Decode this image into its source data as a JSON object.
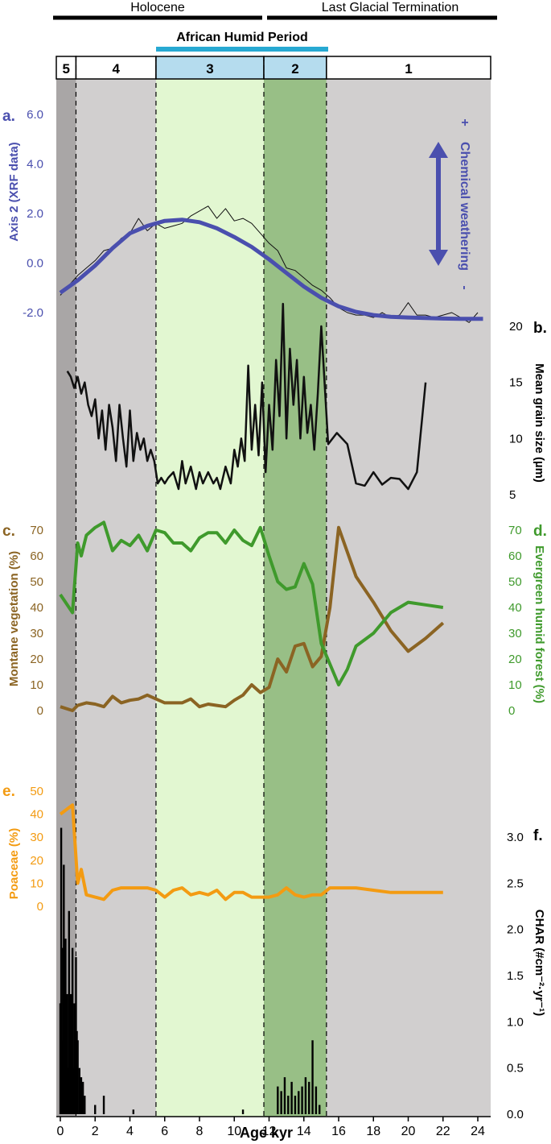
{
  "colors": {
    "zone5": "#a9a6a6",
    "zone4": "#d1cfcf",
    "zone3": "#e2f7d1",
    "zone2": "#98bf86",
    "zone1": "#d1cfcf",
    "zone3_header": "#b5dcee",
    "zone2_header": "#b5dcee",
    "axis2": "#4a4fae",
    "grain": "#111111",
    "montane": "#8b6423",
    "evergreen": "#3f9a2c",
    "poaceae": "#f39b12",
    "char": "#000000",
    "ahp_bar": "#27a9d2"
  },
  "top": {
    "holocene": "Holocene",
    "lgt": "Last Glacial Termination",
    "ahp": "African Humid Period",
    "zones": [
      "5",
      "4",
      "3",
      "2",
      "1"
    ]
  },
  "panel_labels": {
    "a": "a.",
    "b": "b.",
    "c": "c.",
    "d": "d.",
    "e": "e.",
    "f": "f."
  },
  "axis_labels": {
    "a": "Axis 2 (XRF data)",
    "b": "Mean grain size (µm)",
    "c": "Montane vegetation (%)",
    "d": "Evergreen humid forest (%)",
    "e": "Poaceae (%)",
    "f": "CHAR (#cm⁻²·yr⁻¹)",
    "x": "Age kyr"
  },
  "annotation": {
    "plus": "+",
    "chem": "Chemical weathering",
    "minus": "-"
  },
  "ticks": {
    "x": [
      "0",
      "2",
      "4",
      "6",
      "8",
      "10",
      "12",
      "14",
      "16",
      "18",
      "20",
      "22",
      "24"
    ],
    "a": [
      "6.0",
      "4.0",
      "2.0",
      "0.0",
      "-2.0"
    ],
    "b": [
      "20",
      "15",
      "10",
      "5"
    ],
    "c": [
      "70",
      "60",
      "50",
      "40",
      "30",
      "20",
      "10",
      "0"
    ],
    "d": [
      "70",
      "60",
      "50",
      "40",
      "30",
      "20",
      "10",
      "0"
    ],
    "e": [
      "50",
      "40",
      "30",
      "20",
      "10",
      "0"
    ],
    "f": [
      "3.0",
      "2.5",
      "2.0",
      "1.5",
      "1.0",
      "0.5",
      "0.0"
    ]
  },
  "chart_data": [
    {
      "panel": "a",
      "type": "line",
      "ylabel": "Axis 2 (XRF data)",
      "ylim": [
        -2.0,
        6.0
      ],
      "zone_boundaries_kyr": [
        0.9,
        5.5,
        11.7,
        15.3
      ],
      "series": [
        {
          "x": [
            0,
            0.5,
            1,
            1.5,
            2,
            2.5,
            3,
            3.5,
            4,
            4.5,
            5,
            5.5,
            6,
            6.5,
            7,
            7.5,
            8,
            8.5,
            9,
            9.5,
            10,
            10.5,
            11,
            11.5,
            12,
            12.5,
            13,
            13.5,
            14,
            14.5,
            15,
            15.5,
            16,
            16.5,
            17,
            17.5,
            18,
            18.5,
            19,
            19.5,
            20,
            20.5,
            21,
            21.5,
            22,
            22.5,
            23,
            23.5,
            24
          ],
          "y": [
            -1.3,
            -0.9,
            -0.5,
            -0.2,
            0.1,
            0.5,
            0.6,
            1.0,
            1.2,
            1.8,
            1.3,
            1.6,
            1.4,
            1.5,
            1.6,
            1.9,
            2.1,
            2.3,
            1.8,
            2.2,
            1.7,
            1.8,
            1.6,
            1.2,
            0.8,
            0.5,
            -0.2,
            -0.3,
            -0.6,
            -0.9,
            -1.1,
            -1.4,
            -1.8,
            -2.0,
            -2.1,
            -2.1,
            -2.2,
            -2.0,
            -2.2,
            -2.1,
            -1.6,
            -2.1,
            -2.1,
            -2.2,
            -2.1,
            -2.0,
            -2.2,
            -2.4,
            -2.0
          ]
        },
        {
          "x": [
            0,
            1,
            2,
            3,
            4,
            5,
            6,
            7,
            8,
            9,
            10,
            11,
            12,
            13,
            14,
            15,
            16,
            17,
            18,
            19,
            20,
            21,
            22,
            23,
            24.3
          ],
          "y": [
            -1.2,
            -0.7,
            -0.1,
            0.6,
            1.2,
            1.5,
            1.7,
            1.75,
            1.65,
            1.4,
            1.05,
            0.65,
            0.15,
            -0.4,
            -0.95,
            -1.4,
            -1.75,
            -1.97,
            -2.1,
            -2.17,
            -2.2,
            -2.22,
            -2.24,
            -2.25,
            -2.25
          ]
        }
      ]
    },
    {
      "panel": "b",
      "type": "line",
      "ylabel": "Mean grain size (µm)",
      "ylim": [
        5,
        20
      ],
      "x": [
        0.4,
        0.6,
        0.8,
        1.0,
        1.2,
        1.4,
        1.6,
        1.8,
        2.0,
        2.2,
        2.4,
        2.6,
        2.8,
        3.0,
        3.2,
        3.4,
        3.6,
        3.8,
        4.0,
        4.2,
        4.4,
        4.6,
        4.8,
        5.0,
        5.2,
        5.4,
        5.6,
        5.8,
        6.0,
        6.2,
        6.5,
        6.8,
        7.0,
        7.2,
        7.5,
        7.8,
        8.0,
        8.2,
        8.5,
        8.8,
        9.0,
        9.2,
        9.5,
        9.8,
        10.0,
        10.2,
        10.4,
        10.6,
        10.8,
        11.0,
        11.2,
        11.4,
        11.6,
        11.8,
        12.0,
        12.2,
        12.4,
        12.6,
        12.8,
        13.0,
        13.2,
        13.4,
        13.6,
        13.8,
        14.0,
        14.2,
        14.4,
        14.6,
        14.8,
        15.0,
        15.4,
        15.9,
        16.5,
        17.0,
        17.5,
        18.0,
        18.5,
        19.0,
        19.5,
        20.0,
        20.5,
        21.0
      ],
      "y": [
        16,
        15.5,
        14.5,
        15.5,
        14.0,
        15.0,
        13.0,
        12.0,
        13.5,
        10.0,
        12.5,
        9.0,
        13.0,
        11.0,
        8.0,
        13.0,
        10.0,
        7.5,
        12.5,
        8.0,
        10.5,
        9.0,
        10.0,
        8.0,
        9.0,
        8.0,
        6.0,
        6.5,
        6.0,
        6.5,
        7.0,
        5.5,
        8.0,
        6.0,
        7.5,
        5.5,
        7.0,
        6.0,
        7.0,
        6.0,
        6.5,
        5.5,
        7.5,
        6.0,
        9.0,
        7.5,
        10.0,
        8.0,
        16.5,
        9.0,
        13.0,
        8.5,
        15.0,
        7.0,
        13.0,
        9.0,
        17.0,
        12.0,
        22.0,
        10.0,
        18.0,
        13.0,
        17.0,
        10.0,
        15.5,
        10.5,
        13.0,
        9.0,
        14.0,
        20.0,
        9.5,
        10.5,
        9.5,
        6.0,
        5.8,
        7.0,
        5.9,
        6.5,
        6.4,
        5.5,
        7.0,
        15.0
      ]
    },
    {
      "panel": "c-d",
      "type": "line",
      "ylim": [
        0,
        70
      ],
      "series": [
        {
          "name": "Montane vegetation (%)",
          "x": [
            0.0,
            0.7,
            1.0,
            1.5,
            2.0,
            2.5,
            3.0,
            3.5,
            4.0,
            4.5,
            5.0,
            5.5,
            6.0,
            6.5,
            7.0,
            7.5,
            8.0,
            8.5,
            9.0,
            9.5,
            10.0,
            10.5,
            11.0,
            11.5,
            12.0,
            12.5,
            13.0,
            13.5,
            14.0,
            14.5,
            15.0,
            15.5,
            16.0,
            17.0,
            18.0,
            19.0,
            20.0,
            21.0,
            22.0
          ],
          "y": [
            1.5,
            0.0,
            2.0,
            3.0,
            2.5,
            1.5,
            5.5,
            3.0,
            4.0,
            4.5,
            6.0,
            4.5,
            3.0,
            3.0,
            3.0,
            4.5,
            1.5,
            2.5,
            2.0,
            1.5,
            4.0,
            6.0,
            10.0,
            7.0,
            9.0,
            20.0,
            15.0,
            25.0,
            26.0,
            17.0,
            21.0,
            40.0,
            71.0,
            52.0,
            42.0,
            31.0,
            23.0,
            28.0,
            34.0
          ]
        },
        {
          "name": "Evergreen humid forest (%)",
          "x": [
            0.0,
            0.7,
            1.0,
            1.2,
            1.5,
            2.0,
            2.5,
            3.0,
            3.5,
            4.0,
            4.5,
            5.0,
            5.5,
            6.0,
            6.5,
            7.0,
            7.5,
            8.0,
            8.5,
            9.0,
            9.5,
            10.0,
            10.5,
            11.0,
            11.5,
            12.0,
            12.5,
            13.0,
            13.5,
            14.0,
            14.5,
            15.0,
            15.5,
            16.0,
            16.5,
            17.0,
            18.0,
            19.0,
            20.0,
            21.0,
            22.0
          ],
          "y": [
            45.0,
            38.0,
            65.0,
            60.0,
            68.0,
            71.0,
            73.0,
            62.0,
            66.0,
            64.0,
            68.0,
            62.0,
            70.0,
            69.0,
            65.0,
            65.0,
            62.0,
            67.0,
            69.0,
            69.0,
            65.0,
            70.0,
            66.0,
            64.0,
            71.0,
            60.0,
            50.0,
            47.0,
            48.0,
            57.0,
            49.0,
            26.0,
            18.0,
            10.0,
            16.0,
            25.0,
            30.0,
            38.0,
            42.0,
            41.0,
            40.0
          ]
        }
      ]
    },
    {
      "panel": "e-f",
      "type": "line",
      "series": [
        {
          "name": "Poaceae (%)",
          "ylim": [
            0,
            50
          ],
          "x": [
            0.0,
            0.7,
            1.0,
            1.2,
            1.5,
            2.0,
            2.5,
            3.0,
            3.5,
            4.0,
            5.0,
            5.5,
            6.0,
            6.5,
            7.0,
            7.5,
            8.0,
            8.5,
            9.0,
            9.5,
            10.0,
            10.5,
            11.0,
            11.5,
            12.0,
            12.5,
            13.0,
            13.5,
            14.0,
            14.5,
            15.0,
            15.5,
            16.0,
            17.0,
            18.0,
            19.0,
            20.0,
            21.0,
            22.0
          ],
          "y": [
            40.0,
            44.0,
            10.0,
            16.0,
            5.0,
            4.0,
            3.0,
            7.0,
            8.0,
            8.0,
            8.0,
            7.0,
            4.0,
            7.0,
            8.0,
            5.0,
            6.0,
            5.0,
            7.0,
            3.0,
            6.0,
            6.0,
            4.0,
            4.0,
            4.0,
            5.0,
            8.0,
            5.0,
            4.0,
            5.0,
            5.0,
            8.0,
            8.0,
            8.0,
            7.0,
            6.0,
            6.0,
            6.0,
            6.0
          ]
        },
        {
          "name": "CHAR",
          "type": "bar",
          "ylim": [
            0,
            3.0
          ],
          "x": [
            0.0,
            0.05,
            0.1,
            0.15,
            0.2,
            0.25,
            0.3,
            0.35,
            0.4,
            0.45,
            0.5,
            0.55,
            0.6,
            0.65,
            0.7,
            0.75,
            0.8,
            0.85,
            0.9,
            0.95,
            1.0,
            1.1,
            1.2,
            1.3,
            1.4,
            2.0,
            2.5,
            4.2,
            10.5,
            12.5,
            12.7,
            12.9,
            13.1,
            13.3,
            13.5,
            13.7,
            13.9,
            14.1,
            14.3,
            14.5,
            14.7,
            14.9
          ],
          "y": [
            1.2,
            3.1,
            0.8,
            1.8,
            2.7,
            0.9,
            1.9,
            0.6,
            1.3,
            0.5,
            2.2,
            0.8,
            1.3,
            0.4,
            1.8,
            0.5,
            1.2,
            0.3,
            1.7,
            0.9,
            0.8,
            0.5,
            0.4,
            0.35,
            0.2,
            0.1,
            0.2,
            0.05,
            0.05,
            0.3,
            0.25,
            0.4,
            0.2,
            0.35,
            0.2,
            0.25,
            0.3,
            0.4,
            0.35,
            0.8,
            0.3,
            0.1
          ]
        }
      ]
    }
  ]
}
